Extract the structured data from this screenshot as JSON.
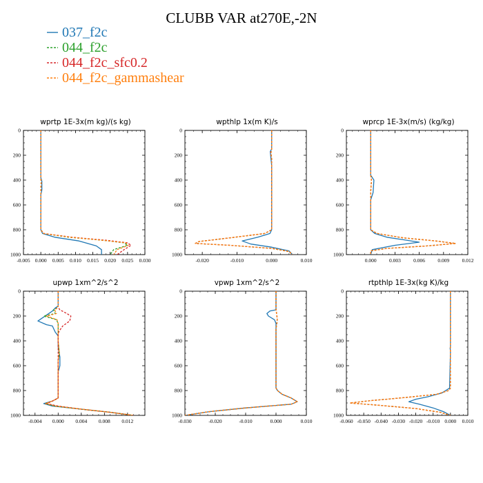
{
  "title": "CLUBB VAR at270E,-2N",
  "legend": [
    {
      "label": "037_f2c",
      "color": "#1f77b4",
      "dash": "solid"
    },
    {
      "label": "044_f2c",
      "color": "#2ca02c",
      "dash": "dashed"
    },
    {
      "label": "044_f2c_sfc0.2",
      "color": "#d62728",
      "dash": "dashed"
    },
    {
      "label": "044_f2c_gammashear",
      "color": "#ff7f0e",
      "dash": "dashed"
    }
  ],
  "chart_data": [
    {
      "type": "line",
      "title": "wprtp  1E-3x(m kg)/(s kg)",
      "xlim": [
        -0.005,
        0.03
      ],
      "ylim": [
        1000,
        0
      ],
      "xticks": [
        -0.005,
        0.0,
        0.005,
        0.01,
        0.015,
        0.02,
        0.025,
        0.03
      ],
      "xtick_labels": [
        "-0.005",
        "0.000",
        "0.005",
        "0.010",
        "0.015",
        "0.020",
        "0.025",
        "0.030"
      ],
      "yticks": [
        0,
        200,
        400,
        600,
        800,
        1000
      ],
      "ytick_labels": [
        "0",
        "200",
        "400",
        "600",
        "800",
        "1000"
      ],
      "series": [
        {
          "name": "037_f2c",
          "x": [
            0,
            0,
            0.0003,
            0.0003,
            0,
            0,
            0.0005,
            0.004,
            0.011,
            0.016,
            0.0175,
            0.0175
          ],
          "y": [
            0,
            380,
            410,
            480,
            520,
            800,
            830,
            860,
            890,
            930,
            960,
            1000
          ]
        },
        {
          "name": "044_f2c",
          "x": [
            0,
            0,
            0.0001,
            0,
            0,
            0.0008,
            0.008,
            0.018,
            0.024,
            0.025,
            0.021,
            0.02
          ],
          "y": [
            0,
            380,
            420,
            480,
            800,
            830,
            860,
            885,
            905,
            925,
            960,
            1000
          ]
        },
        {
          "name": "044_f2c_sfc0.2",
          "x": [
            0,
            0,
            0.0001,
            0,
            0,
            0.0009,
            0.009,
            0.019,
            0.025,
            0.026,
            0.024,
            0.022
          ],
          "y": [
            0,
            380,
            420,
            480,
            800,
            830,
            860,
            885,
            905,
            925,
            960,
            1000
          ]
        },
        {
          "name": "044_f2c_gammashear",
          "x": [
            0,
            0,
            0.0001,
            0,
            0,
            0.0008,
            0.0085,
            0.018,
            0.0245,
            0.0252,
            0.022,
            0.021
          ],
          "y": [
            0,
            380,
            420,
            480,
            800,
            830,
            860,
            885,
            905,
            925,
            960,
            1000
          ]
        }
      ]
    },
    {
      "type": "line",
      "title": "wpthlp  1x(m K)/s",
      "xlim": [
        -0.025,
        0.01
      ],
      "ylim": [
        1000,
        0
      ],
      "xticks": [
        -0.02,
        -0.01,
        0.0,
        0.01
      ],
      "xtick_labels": [
        "-0.020",
        "-0.010",
        "0.000",
        "0.010"
      ],
      "yticks": [
        0,
        200,
        400,
        600,
        800,
        1000
      ],
      "ytick_labels": [
        "0",
        "200",
        "400",
        "600",
        "800",
        "1000"
      ],
      "series": [
        {
          "name": "037_f2c",
          "x": [
            0,
            0,
            -0.0004,
            -0.0002,
            0,
            0,
            -0.0005,
            -0.004,
            -0.0085,
            -0.006,
            0,
            0.005,
            0.006
          ],
          "y": [
            0,
            150,
            170,
            230,
            280,
            800,
            830,
            860,
            890,
            915,
            940,
            970,
            1000
          ]
        },
        {
          "name": "044_f2c",
          "x": [
            0,
            0,
            -0.0002,
            0,
            0,
            -0.002,
            -0.012,
            -0.021,
            -0.022,
            -0.012,
            0.0,
            0.005,
            0.006
          ],
          "y": [
            0,
            150,
            180,
            230,
            800,
            830,
            865,
            895,
            910,
            925,
            950,
            975,
            1000
          ]
        },
        {
          "name": "044_f2c_sfc0.2",
          "x": [
            0,
            0,
            -0.0003,
            0,
            0,
            -0.002,
            -0.012,
            -0.021,
            -0.022,
            -0.012,
            0.0,
            0.005,
            0.006
          ],
          "y": [
            0,
            150,
            180,
            230,
            800,
            830,
            865,
            895,
            910,
            925,
            950,
            975,
            1000
          ]
        },
        {
          "name": "044_f2c_gammashear",
          "x": [
            0,
            0,
            -0.0002,
            0,
            0,
            -0.002,
            -0.012,
            -0.021,
            -0.022,
            -0.012,
            0.0,
            0.005,
            0.006
          ],
          "y": [
            0,
            150,
            180,
            230,
            800,
            830,
            865,
            895,
            910,
            925,
            950,
            975,
            1000
          ]
        }
      ]
    },
    {
      "type": "line",
      "title": "wprcp  1E-3x(m/s) (kg/kg)",
      "xlim": [
        -0.003,
        0.012
      ],
      "ylim": [
        1000,
        0
      ],
      "xticks": [
        0.0,
        0.003,
        0.006,
        0.009,
        0.012
      ],
      "xtick_labels": [
        "0.000",
        "0.003",
        "0.006",
        "0.009",
        "0.012"
      ],
      "yticks": [
        0,
        200,
        400,
        600,
        800,
        1000
      ],
      "ytick_labels": [
        "0",
        "200",
        "400",
        "600",
        "800",
        "1000"
      ],
      "series": [
        {
          "name": "037_f2c",
          "x": [
            0,
            0,
            0.0004,
            0.0003,
            0,
            0,
            0.0005,
            0.002,
            0.004,
            0.006,
            0.003,
            0.0002,
            0
          ],
          "y": [
            0,
            360,
            400,
            500,
            560,
            800,
            830,
            860,
            880,
            900,
            925,
            960,
            1000
          ]
        },
        {
          "name": "044_f2c",
          "x": [
            0,
            0,
            0.0001,
            0,
            0,
            0.0008,
            0.004,
            0.008,
            0.0105,
            0.007,
            0.002,
            0,
            0
          ],
          "y": [
            0,
            360,
            400,
            500,
            800,
            830,
            865,
            890,
            910,
            930,
            950,
            970,
            1000
          ]
        },
        {
          "name": "044_f2c_sfc0.2",
          "x": [
            0,
            0,
            0.0001,
            0,
            0,
            0.0008,
            0.004,
            0.008,
            0.0105,
            0.007,
            0.002,
            0,
            0
          ],
          "y": [
            0,
            360,
            400,
            500,
            800,
            830,
            865,
            890,
            910,
            930,
            950,
            970,
            1000
          ]
        },
        {
          "name": "044_f2c_gammashear",
          "x": [
            0,
            0,
            0.0001,
            0,
            0,
            0.0008,
            0.004,
            0.008,
            0.0105,
            0.007,
            0.002,
            0,
            0
          ],
          "y": [
            0,
            360,
            400,
            500,
            800,
            830,
            865,
            890,
            910,
            930,
            950,
            970,
            1000
          ]
        }
      ]
    },
    {
      "type": "line",
      "title": "upwp  1xm^2/s^2",
      "xlim": [
        -0.006,
        0.015
      ],
      "ylim": [
        1000,
        0
      ],
      "xticks": [
        -0.004,
        0.0,
        0.004,
        0.008,
        0.012
      ],
      "xtick_labels": [
        "-0.004",
        "0.000",
        "0.004",
        "0.008",
        "0.012"
      ],
      "yticks": [
        0,
        200,
        400,
        600,
        800,
        1000
      ],
      "ytick_labels": [
        "0",
        "200",
        "400",
        "600",
        "800",
        "1000"
      ],
      "series": [
        {
          "name": "037_f2c",
          "x": [
            0,
            0,
            -0.0005,
            -0.001,
            -0.0035,
            -0.002,
            -0.001,
            -0.0005,
            0,
            0,
            0.0003,
            0.0003,
            0,
            0,
            -0.001,
            -0.0025,
            -0.001,
            0.004,
            0.009,
            0.013
          ],
          "y": [
            0,
            120,
            135,
            160,
            240,
            270,
            280,
            330,
            360,
            450,
            530,
            600,
            650,
            860,
            885,
            905,
            925,
            950,
            975,
            1000
          ]
        },
        {
          "name": "044_f2c",
          "x": [
            0,
            0,
            -0.0008,
            -0.0005,
            -0.0025,
            -0.001,
            -0.0003,
            0,
            0,
            0.0002,
            0,
            0,
            -0.001,
            -0.0022,
            -0.0005,
            0.004,
            0.009,
            0.013
          ],
          "y": [
            0,
            130,
            150,
            180,
            200,
            220,
            230,
            260,
            400,
            500,
            560,
            860,
            885,
            905,
            925,
            950,
            975,
            1000
          ]
        },
        {
          "name": "044_f2c_sfc0.2",
          "x": [
            0,
            0,
            0.0003,
            0.0015,
            0.0022,
            0.002,
            0.0008,
            0.0002,
            0,
            0,
            0,
            -0.001,
            -0.002,
            0,
            0.004,
            0.009,
            0.013
          ],
          "y": [
            0,
            130,
            150,
            180,
            200,
            240,
            280,
            320,
            340,
            400,
            860,
            885,
            905,
            925,
            950,
            975,
            1000
          ]
        },
        {
          "name": "044_f2c_gammashear",
          "x": [
            0,
            0,
            -0.0006,
            -0.0003,
            -0.002,
            -0.0008,
            -0.0002,
            0,
            0,
            0.0002,
            0,
            0,
            -0.001,
            -0.0022,
            -0.0005,
            0.004,
            0.009,
            0.013
          ],
          "y": [
            0,
            130,
            150,
            180,
            200,
            220,
            230,
            260,
            400,
            500,
            560,
            860,
            885,
            905,
            925,
            950,
            975,
            1000
          ]
        }
      ]
    },
    {
      "type": "line",
      "title": "vpwp  1xm^2/s^2",
      "xlim": [
        -0.03,
        0.01
      ],
      "ylim": [
        1000,
        0
      ],
      "xticks": [
        -0.03,
        -0.02,
        -0.01,
        0.0,
        0.01
      ],
      "xtick_labels": [
        "-0.030",
        "-0.020",
        "-0.010",
        "0.000",
        "0.010"
      ],
      "yticks": [
        0,
        200,
        400,
        600,
        800,
        1000
      ],
      "ytick_labels": [
        "0",
        "200",
        "400",
        "600",
        "800",
        "1000"
      ],
      "series": [
        {
          "name": "037_f2c",
          "x": [
            0,
            0,
            -0.002,
            -0.003,
            -0.0025,
            -0.0005,
            0,
            0,
            0.0005,
            0.002,
            0.005,
            0.007,
            0.005,
            -0.01,
            -0.022,
            -0.03
          ],
          "y": [
            0,
            150,
            160,
            180,
            200,
            230,
            260,
            780,
            800,
            830,
            860,
            890,
            910,
            940,
            970,
            1000
          ]
        },
        {
          "name": "044_f2c",
          "x": [
            0,
            0,
            0.0002,
            0.0004,
            0.0003,
            0,
            0,
            0.0005,
            0.002,
            0.005,
            0.007,
            0.005,
            -0.01,
            -0.022,
            -0.03
          ],
          "y": [
            0,
            150,
            180,
            220,
            260,
            300,
            780,
            800,
            830,
            860,
            890,
            910,
            940,
            970,
            1000
          ]
        },
        {
          "name": "044_f2c_sfc0.2",
          "x": [
            0,
            0,
            0.0002,
            0.0004,
            0.0003,
            0,
            0,
            0.0005,
            0.002,
            0.005,
            0.007,
            0.005,
            -0.01,
            -0.022,
            -0.03
          ],
          "y": [
            0,
            150,
            180,
            220,
            260,
            300,
            780,
            800,
            830,
            860,
            890,
            910,
            940,
            970,
            1000
          ]
        },
        {
          "name": "044_f2c_gammashear",
          "x": [
            0,
            0,
            0.0002,
            0.0004,
            0.0003,
            0,
            0,
            0.0005,
            0.002,
            0.005,
            0.007,
            0.005,
            -0.01,
            -0.022,
            -0.03
          ],
          "y": [
            0,
            150,
            180,
            220,
            260,
            300,
            780,
            800,
            830,
            860,
            890,
            910,
            940,
            970,
            1000
          ]
        }
      ]
    },
    {
      "type": "line",
      "title": "rtpthlp  1E-3x(kg K)/kg",
      "xlim": [
        -0.06,
        0.01
      ],
      "ylim": [
        1000,
        0
      ],
      "xticks": [
        -0.06,
        -0.05,
        -0.04,
        -0.03,
        -0.02,
        -0.01,
        0.0,
        0.01
      ],
      "xtick_labels": [
        "-0.060",
        "-0.050",
        "-0.040",
        "-0.030",
        "-0.020",
        "-0.010",
        "0.000",
        "0.010"
      ],
      "yticks": [
        0,
        200,
        400,
        600,
        800,
        1000
      ],
      "ytick_labels": [
        "0",
        "200",
        "400",
        "600",
        "800",
        "1000"
      ],
      "series": [
        {
          "name": "037_f2c",
          "x": [
            0,
            0,
            -0.0002,
            0,
            -0.0005,
            -0.005,
            -0.013,
            -0.02,
            -0.024,
            -0.018,
            -0.01,
            -0.004,
            0
          ],
          "y": [
            0,
            440,
            460,
            480,
            780,
            820,
            850,
            870,
            890,
            910,
            940,
            970,
            1000
          ]
        },
        {
          "name": "044_f2c",
          "x": [
            0,
            0,
            -0.001,
            -0.008,
            -0.025,
            -0.045,
            -0.058,
            -0.04,
            -0.02,
            -0.006,
            0
          ],
          "y": [
            0,
            780,
            800,
            830,
            855,
            880,
            900,
            920,
            945,
            975,
            1000
          ]
        },
        {
          "name": "044_f2c_sfc0.2",
          "x": [
            0,
            0,
            -0.001,
            -0.008,
            -0.025,
            -0.045,
            -0.058,
            -0.04,
            -0.02,
            -0.006,
            0
          ],
          "y": [
            0,
            780,
            800,
            830,
            855,
            880,
            900,
            920,
            945,
            975,
            1000
          ]
        },
        {
          "name": "044_f2c_gammashear",
          "x": [
            0,
            0,
            -0.001,
            -0.008,
            -0.025,
            -0.045,
            -0.058,
            -0.04,
            -0.02,
            -0.006,
            0
          ],
          "y": [
            0,
            780,
            800,
            830,
            855,
            880,
            900,
            920,
            945,
            975,
            1000
          ]
        }
      ]
    }
  ]
}
